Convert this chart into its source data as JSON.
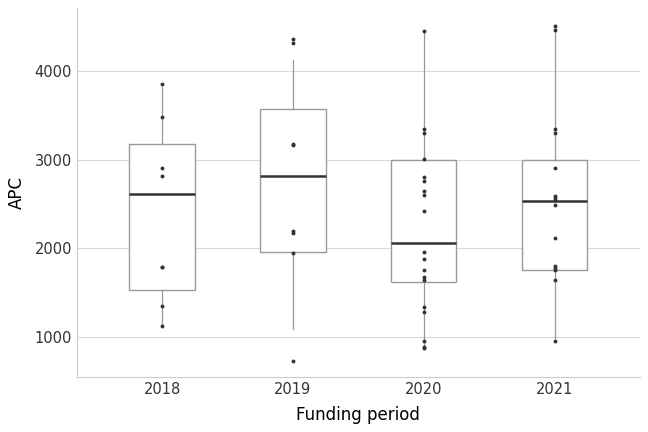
{
  "title": "",
  "xlabel": "Funding period",
  "ylabel": "APC",
  "background_color": "#ffffff",
  "grid_color": "#d9d9d9",
  "box_edge_color": "#999999",
  "median_color": "#333333",
  "whisker_color": "#999999",
  "outlier_color": "#333333",
  "ylim": [
    550,
    4700
  ],
  "yticks": [
    1000,
    2000,
    3000,
    4000
  ],
  "categories": [
    "2018",
    "2019",
    "2020",
    "2021"
  ],
  "box_stats": {
    "2018": {
      "q1": 1530,
      "median": 2610,
      "q3": 3170,
      "whisker_low": 1150,
      "whisker_high": 3820,
      "outliers": [
        1130,
        1350,
        1790,
        1790,
        2810,
        2900,
        3480,
        3850
      ]
    },
    "2019": {
      "q1": 1960,
      "median": 2820,
      "q3": 3570,
      "whisker_low": 1090,
      "whisker_high": 4120,
      "outliers": [
        740,
        1950,
        2170,
        2200,
        3160,
        3170,
        4310,
        4360
      ]
    },
    "2020": {
      "q1": 1620,
      "median": 2060,
      "q3": 3000,
      "whisker_low": 870,
      "whisker_high": 4440,
      "outliers": [
        880,
        895,
        960,
        1290,
        1340,
        1650,
        1680,
        1760,
        1880,
        1960,
        2420,
        2600,
        2650,
        2760,
        2800,
        3010,
        3300,
        3340,
        4450
      ]
    },
    "2021": {
      "q1": 1760,
      "median": 2535,
      "q3": 3000,
      "whisker_low": 990,
      "whisker_high": 4480,
      "outliers": [
        960,
        1645,
        1760,
        1780,
        1800,
        2120,
        2490,
        2545,
        2565,
        2595,
        2905,
        3300,
        3345,
        4455,
        4505
      ]
    }
  },
  "box_width": 0.5
}
